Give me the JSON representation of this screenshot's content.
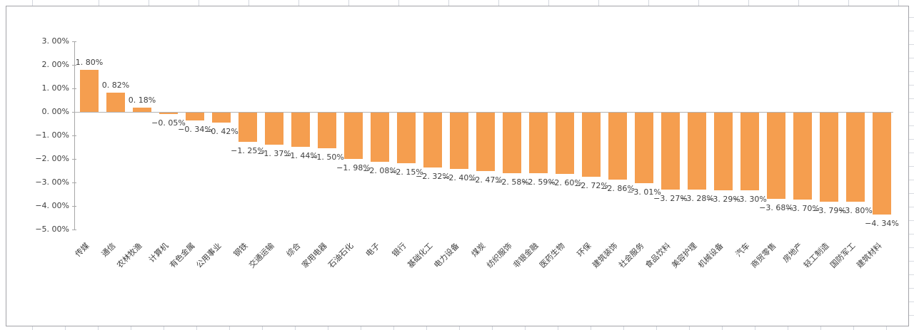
{
  "window": {
    "background_color": "#ffffff",
    "chart_border_color": "#a3a3a8",
    "spreadsheet_gridline_color": "#d3d7de"
  },
  "chart_data": {
    "type": "bar",
    "title": "",
    "xlabel": "",
    "ylabel": "",
    "legend": "none",
    "grid": false,
    "ylim": [
      -5,
      3
    ],
    "bar_color": "#f59e4f",
    "axis_color": "#a6a6a6",
    "zero_line_color": "#b3b3b3",
    "text_color": "#3f3f3f",
    "categories": [
      "传媒",
      "通信",
      "农林牧渔",
      "计算机",
      "有色金属",
      "公用事业",
      "钢铁",
      "交通运输",
      "综合",
      "家用电器",
      "石油石化",
      "电子",
      "银行",
      "基础化工",
      "电力设备",
      "煤炭",
      "纺织服饰",
      "非银金融",
      "医药生物",
      "环保",
      "建筑装饰",
      "社会服务",
      "食品饮料",
      "美容护理",
      "机械设备",
      "汽车",
      "商贸零售",
      "房地产",
      "轻工制造",
      "国防军工",
      "建筑材料"
    ],
    "values": [
      1.8,
      0.82,
      0.18,
      -0.05,
      -0.34,
      -0.42,
      -1.25,
      -1.37,
      -1.44,
      -1.5,
      -1.98,
      -2.08,
      -2.15,
      -2.32,
      -2.4,
      -2.47,
      -2.58,
      -2.59,
      -2.6,
      -2.72,
      -2.86,
      -3.01,
      -3.27,
      -3.28,
      -3.29,
      -3.3,
      -3.68,
      -3.7,
      -3.79,
      -3.8,
      -4.34
    ],
    "data_labels": [
      "1. 80%",
      "0. 82%",
      "0. 18%",
      "−0. 05%",
      "−0. 34%",
      "−0. 42%",
      "−1. 25%",
      "−1. 37%",
      "−1. 44%",
      "−1. 50%",
      "−1. 98%",
      "−2. 08%",
      "−2. 15%",
      "−2. 32%",
      "−2. 40%",
      "−2. 47%",
      "−2. 58%",
      "−2. 59%",
      "−2. 60%",
      "−2. 72%",
      "−2. 86%",
      "−3. 01%",
      "−3. 27%",
      "−3. 28%",
      "−3. 29%",
      "−3. 30%",
      "−3. 68%",
      "−3. 70%",
      "−3. 79%",
      "−3. 80%",
      "−4. 34%"
    ],
    "y_tick_values": [
      3,
      2,
      1,
      0,
      -1,
      -2,
      -3,
      -4,
      -5
    ],
    "y_tick_labels": [
      "3. 00%",
      "2. 00%",
      "1. 00%",
      "0. 00%",
      "−1. 00%",
      "−2. 00%",
      "−3. 00%",
      "−4. 00%",
      "−5. 00%"
    ]
  }
}
